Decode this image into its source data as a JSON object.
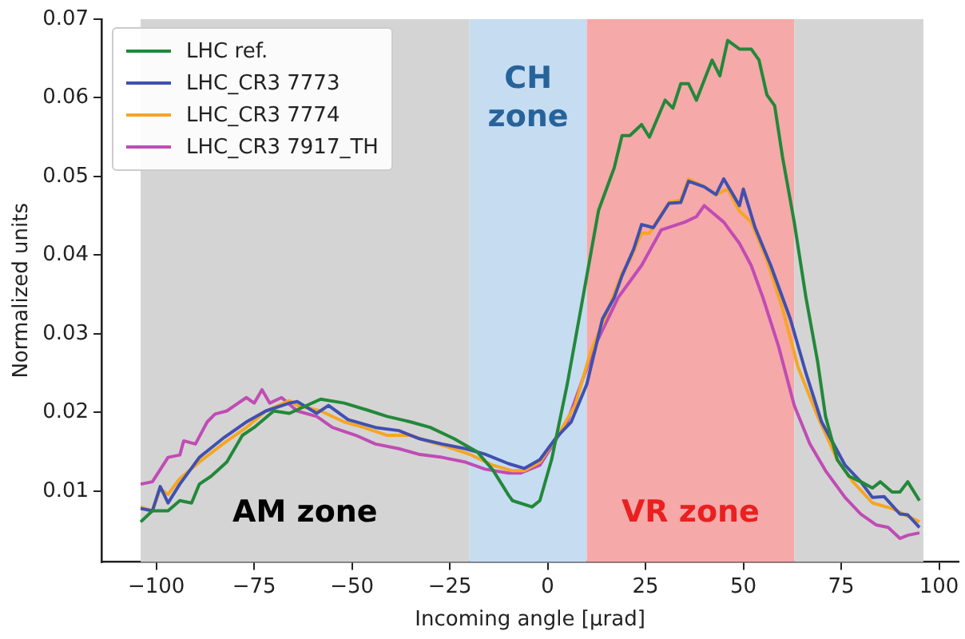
{
  "chart_data": {
    "type": "line",
    "xlabel": "Incoming angle [μrad]",
    "ylabel": "Normalized units",
    "xlim": [
      -114,
      105
    ],
    "ylim": [
      0.001,
      0.07
    ],
    "xticks": [
      {
        "value": -100,
        "label": "−100"
      },
      {
        "value": -75,
        "label": "−75"
      },
      {
        "value": -50,
        "label": "−50"
      },
      {
        "value": -25,
        "label": "−25"
      },
      0,
      25,
      50,
      75,
      100
    ],
    "yticks": [
      0.01,
      0.02,
      0.03,
      0.04,
      0.05,
      0.06,
      0.07
    ],
    "grid": false,
    "legend": "top left",
    "marker": "none",
    "line_style": "solid",
    "bands": [
      {
        "axis": "x",
        "from": -104,
        "to": -20,
        "label": "AM zone",
        "color": "#d4d4d4"
      },
      {
        "axis": "x",
        "from": -20,
        "to": 10,
        "label": "CH zone",
        "color": "#c6dcf1"
      },
      {
        "axis": "x",
        "from": 10,
        "to": 63,
        "label": "VR zone",
        "color": "#f5a9a9"
      },
      {
        "axis": "x",
        "from": 63,
        "to": 96,
        "color": "#d4d4d4"
      }
    ],
    "series": [
      {
        "name": "LHC ref.",
        "color": "#23883a",
        "x": [
          -104,
          -101,
          -97,
          -94,
          -91,
          -89,
          -86,
          -82,
          -78,
          -75,
          -70,
          -66,
          -58,
          -52,
          -46,
          -41,
          -35,
          -30,
          -24,
          -18,
          -14,
          -10,
          -9,
          -4,
          -2,
          1,
          5,
          9,
          13,
          17,
          19,
          21,
          24,
          26,
          30,
          32,
          34,
          36,
          38,
          42,
          44,
          46,
          49,
          52,
          54,
          56,
          58,
          60,
          63,
          66,
          69,
          71,
          74,
          77,
          80,
          83,
          85,
          88,
          90,
          92,
          95
        ],
        "values": [
          0.0061,
          0.0075,
          0.0075,
          0.0088,
          0.0085,
          0.0109,
          0.0119,
          0.0137,
          0.0171,
          0.0181,
          0.0202,
          0.0199,
          0.0217,
          0.0212,
          0.0203,
          0.0195,
          0.0188,
          0.0181,
          0.0167,
          0.015,
          0.0127,
          0.0095,
          0.0088,
          0.008,
          0.0088,
          0.014,
          0.0236,
          0.0346,
          0.0457,
          0.0511,
          0.0552,
          0.0552,
          0.0566,
          0.055,
          0.0597,
          0.0587,
          0.0618,
          0.0618,
          0.0597,
          0.0648,
          0.0628,
          0.0673,
          0.0662,
          0.0662,
          0.0648,
          0.0604,
          0.059,
          0.0525,
          0.0442,
          0.0346,
          0.0264,
          0.0195,
          0.014,
          0.0119,
          0.0112,
          0.0104,
          0.0112,
          0.0099,
          0.0099,
          0.0112,
          0.0088
        ]
      },
      {
        "name": "LHC_CR3 7773",
        "color": "#4050b0",
        "x": [
          -104,
          -101,
          -99,
          -97,
          -94,
          -89,
          -83,
          -77,
          -72,
          -66,
          -64,
          -59,
          -56,
          -51,
          -44,
          -38,
          -33,
          -27,
          -21,
          -16,
          -10,
          -6,
          -2,
          2,
          6,
          10,
          14,
          17,
          19,
          22,
          24,
          27,
          31,
          34,
          36,
          40,
          43,
          45,
          49,
          50,
          53,
          57,
          62,
          66,
          70,
          76,
          80,
          83,
          86,
          90,
          92,
          95
        ],
        "values": [
          0.0078,
          0.0075,
          0.0106,
          0.0085,
          0.0109,
          0.0143,
          0.0167,
          0.0188,
          0.0202,
          0.0212,
          0.0214,
          0.0199,
          0.0209,
          0.0191,
          0.0181,
          0.0177,
          0.0167,
          0.016,
          0.0154,
          0.0147,
          0.0135,
          0.0129,
          0.014,
          0.0167,
          0.0188,
          0.0236,
          0.0319,
          0.0346,
          0.0374,
          0.0408,
          0.0439,
          0.0435,
          0.0466,
          0.0467,
          0.0494,
          0.0487,
          0.0477,
          0.0497,
          0.0463,
          0.0484,
          0.0435,
          0.0387,
          0.0319,
          0.025,
          0.0188,
          0.0133,
          0.0112,
          0.0092,
          0.0093,
          0.0071,
          0.007,
          0.0054
        ]
      },
      {
        "name": "LHC_CR3 7774",
        "color": "#f5a623",
        "x": [
          -104,
          -101,
          -99,
          -97,
          -94,
          -89,
          -83,
          -77,
          -72,
          -66,
          -64,
          -58,
          -52,
          -47,
          -41,
          -35,
          -31,
          -26,
          -20,
          -14,
          -9,
          -6,
          -2,
          3,
          7,
          11,
          15,
          19,
          21,
          24,
          26,
          31,
          34,
          36,
          40,
          43,
          46,
          49,
          52,
          56,
          60,
          64,
          69,
          74,
          78,
          83,
          88,
          95
        ],
        "values": [
          0.008,
          0.0075,
          0.0103,
          0.0096,
          0.0116,
          0.0137,
          0.016,
          0.0181,
          0.0202,
          0.0215,
          0.0209,
          0.0202,
          0.0188,
          0.0181,
          0.0171,
          0.0171,
          0.0164,
          0.0157,
          0.0147,
          0.0133,
          0.0126,
          0.0126,
          0.0137,
          0.0174,
          0.0209,
          0.0277,
          0.0325,
          0.0377,
          0.0394,
          0.0428,
          0.0428,
          0.0467,
          0.047,
          0.0497,
          0.0487,
          0.0477,
          0.0484,
          0.0456,
          0.0442,
          0.0394,
          0.0332,
          0.0257,
          0.0195,
          0.014,
          0.0112,
          0.0085,
          0.0078,
          0.0061
        ]
      },
      {
        "name": "LHC_CR3 7917_TH",
        "color": "#c04cb5",
        "x": [
          -104,
          -101,
          -97,
          -94,
          -93,
          -90,
          -87,
          -85,
          -82,
          -77,
          -75,
          -73,
          -71,
          -68,
          -64,
          -59,
          -55,
          -49,
          -44,
          -38,
          -33,
          -27,
          -21,
          -16,
          -10,
          -7,
          -2,
          5,
          12,
          18,
          24,
          29,
          35,
          38,
          40,
          45,
          49,
          52,
          55,
          59,
          63,
          67,
          71,
          76,
          80,
          84,
          87,
          90,
          92,
          95
        ],
        "values": [
          0.0109,
          0.0112,
          0.0143,
          0.0146,
          0.0164,
          0.016,
          0.0188,
          0.0198,
          0.0202,
          0.0219,
          0.0212,
          0.0229,
          0.0212,
          0.0219,
          0.0202,
          0.0195,
          0.0181,
          0.0171,
          0.016,
          0.0154,
          0.0147,
          0.0143,
          0.0137,
          0.0128,
          0.0123,
          0.0123,
          0.0133,
          0.0188,
          0.0284,
          0.0346,
          0.0387,
          0.0432,
          0.0442,
          0.0449,
          0.0463,
          0.0442,
          0.0415,
          0.0387,
          0.0346,
          0.0284,
          0.0209,
          0.016,
          0.0126,
          0.0092,
          0.0071,
          0.0057,
          0.0054,
          0.004,
          0.0044,
          0.0047
        ]
      }
    ]
  }
}
